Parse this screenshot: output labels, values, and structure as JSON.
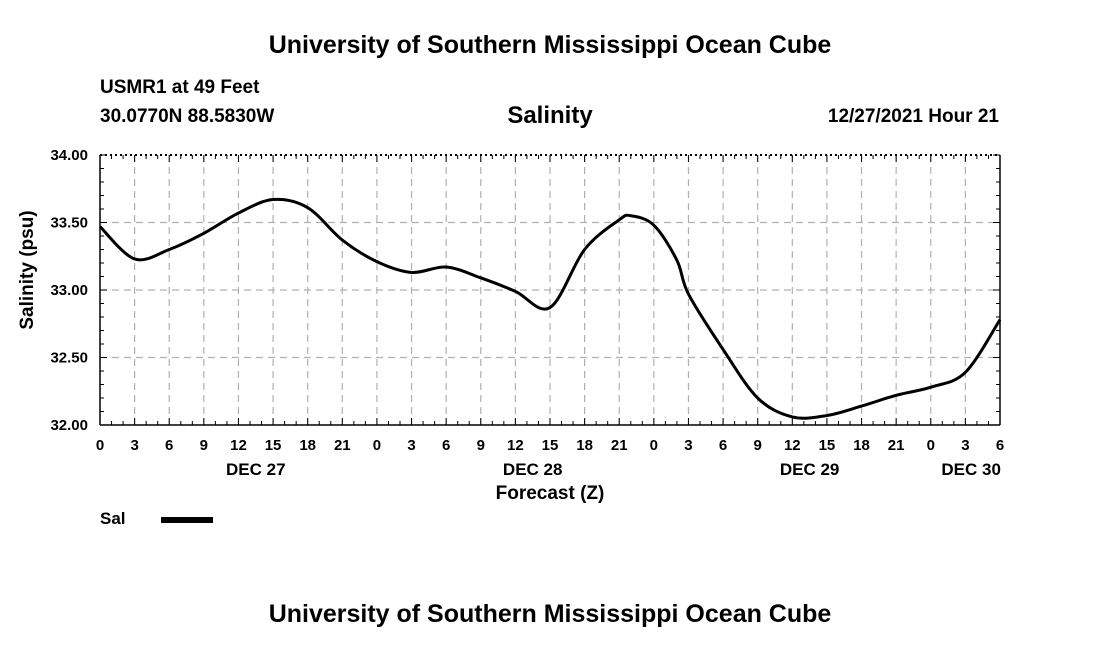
{
  "header": {
    "title_top": "University of Southern Mississippi Ocean Cube",
    "station": "USMR1 at 49 Feet",
    "coords": "30.0770N  88.5830W",
    "datetime": "12/27/2021 Hour 21",
    "title_bottom": "University of Southern Mississippi Ocean Cube"
  },
  "chart_data": {
    "type": "line",
    "title": "Salinity",
    "xlabel": "Forecast (Z)",
    "ylabel": "Salinity (psu)",
    "xlim": [
      0,
      78
    ],
    "ylim": [
      32.0,
      34.0
    ],
    "grid": true,
    "x_ticks": [
      0,
      3,
      6,
      9,
      12,
      15,
      18,
      21,
      24,
      27,
      30,
      33,
      36,
      39,
      42,
      45,
      48,
      51,
      54,
      57,
      60,
      63,
      66,
      69,
      72,
      75,
      78
    ],
    "x_tick_labels": [
      "0",
      "3",
      "6",
      "9",
      "12",
      "15",
      "18",
      "21",
      "0",
      "3",
      "6",
      "9",
      "12",
      "15",
      "18",
      "21",
      "0",
      "3",
      "6",
      "9",
      "12",
      "15",
      "18",
      "21",
      "0",
      "3",
      "6"
    ],
    "y_ticks": [
      32.0,
      32.5,
      33.0,
      33.5,
      34.0
    ],
    "y_tick_labels": [
      "32.00",
      "32.50",
      "33.00",
      "33.50",
      "34.00"
    ],
    "date_labels": [
      {
        "x": 13.5,
        "label": "DEC 27"
      },
      {
        "x": 37.5,
        "label": "DEC 28"
      },
      {
        "x": 61.5,
        "label": "DEC 29"
      },
      {
        "x": 75.5,
        "label": "DEC 30"
      }
    ],
    "series": [
      {
        "name": "Sal",
        "x": [
          0,
          3,
          6,
          9,
          12,
          15,
          18,
          21,
          24,
          27,
          30,
          33,
          36,
          39,
          42,
          45,
          46,
          48,
          50,
          51,
          54,
          57,
          60,
          63,
          66,
          69,
          72,
          75,
          78
        ],
        "values": [
          33.47,
          33.23,
          33.3,
          33.42,
          33.57,
          33.67,
          33.61,
          33.37,
          33.21,
          33.13,
          33.17,
          33.09,
          32.99,
          32.87,
          33.3,
          33.52,
          33.55,
          33.48,
          33.22,
          32.97,
          32.56,
          32.2,
          32.06,
          32.07,
          32.14,
          32.22,
          32.28,
          32.39,
          32.78
        ]
      }
    ],
    "legend": [
      {
        "name": "Sal",
        "label": "Sal"
      }
    ],
    "legend_position": "bottom-left"
  }
}
